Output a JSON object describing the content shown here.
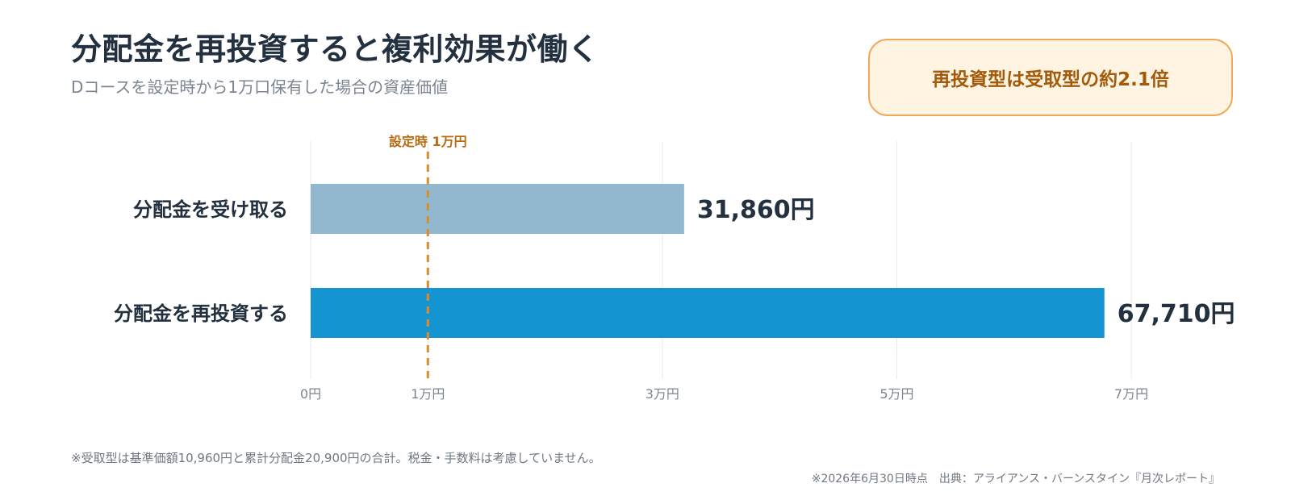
{
  "title": "分配金を再投資すると複利効果が働く",
  "subtitle": "Dコースを設定時から1万口保有した場合の資産価値",
  "callout": "再投資型は受取型の約2.1倍",
  "footnote": "※受取型は基準価額10,960円と累計分配金20,900円の合計。税金・手数料は考慮していません。",
  "source": "※2026年6月30日時点　出典：アライアンス・バーンスタイン『月次レポート』",
  "colors": {
    "receive_bar": "#92b8d0",
    "reinvest_bar": "#1594d2",
    "reference_line": "#e08a2e",
    "grid": "#e6e9ed",
    "callout_border": "#f0a95a",
    "callout_fill": "#fff3e2"
  },
  "chart_data": {
    "type": "bar",
    "orientation": "horizontal",
    "categories": [
      "分配金を受け取る",
      "分配金を再投資する"
    ],
    "values": [
      31860,
      67710
    ],
    "value_labels": [
      "31,860円",
      "67,710円"
    ],
    "xlim": [
      0,
      78000
    ],
    "xticks": [
      0,
      10000,
      30000,
      50000,
      70000
    ],
    "xtick_labels": [
      "0円",
      "1万円",
      "3万円",
      "5万円",
      "7万円"
    ],
    "reference_line": {
      "value": 10000,
      "label": "設定時 1万円"
    },
    "grid": true,
    "xlabel": "",
    "ylabel": ""
  }
}
